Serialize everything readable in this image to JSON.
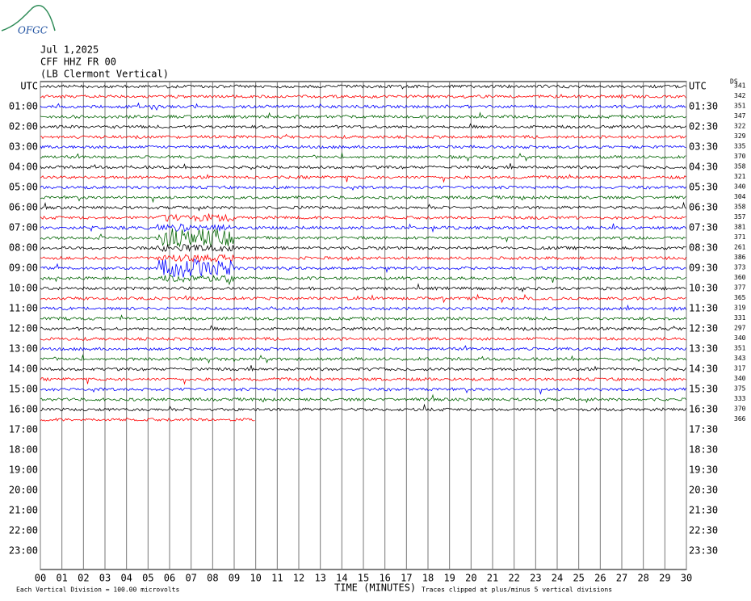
{
  "header": {
    "logo": "OFGC",
    "date": "Jul 1,2025",
    "station": "CFF HHZ FR 00",
    "location": "(LB Clermont Vertical)"
  },
  "left_labels": [
    "UTC",
    "01:00",
    "02:00",
    "03:00",
    "04:00",
    "05:00",
    "06:00",
    "07:00",
    "08:00",
    "09:00",
    "10:00",
    "11:00",
    "12:00",
    "13:00",
    "14:00",
    "15:00",
    "16:00",
    "17:00",
    "18:00",
    "19:00",
    "20:00",
    "21:00",
    "22:00",
    "23:00"
  ],
  "right_labels": [
    "UTC",
    "01:30",
    "02:30",
    "03:30",
    "04:30",
    "05:30",
    "06:30",
    "07:30",
    "08:30",
    "09:30",
    "10:30",
    "11:30",
    "12:30",
    "13:30",
    "14:30",
    "15:30",
    "16:30",
    "17:30",
    "18:30",
    "19:30",
    "20:30",
    "21:30",
    "22:30",
    "23:30"
  ],
  "ds_label": "DS",
  "ds_values": [
    341,
    342,
    351,
    347,
    322,
    329,
    335,
    370,
    358,
    321,
    340,
    304,
    358,
    357,
    381,
    371,
    261,
    386,
    373,
    360,
    377,
    365,
    319,
    331,
    297,
    340,
    351,
    343,
    317,
    340,
    375,
    333,
    370,
    366
  ],
  "x_labels": [
    "00",
    "01",
    "02",
    "03",
    "04",
    "05",
    "06",
    "07",
    "08",
    "09",
    "10",
    "11",
    "12",
    "13",
    "14",
    "15",
    "16",
    "17",
    "18",
    "19",
    "20",
    "21",
    "22",
    "23",
    "24",
    "25",
    "26",
    "27",
    "28",
    "29",
    "30"
  ],
  "trace_colors": [
    "#000000",
    "#ff0000",
    "#0000ff",
    "#006400"
  ],
  "footer": {
    "division": "Each Vertical Division =  100.00 microvolts",
    "axis_title": "TIME (MINUTES)",
    "clip_note": "Traces clipped at plus/minus 5 vertical divisions"
  }
}
